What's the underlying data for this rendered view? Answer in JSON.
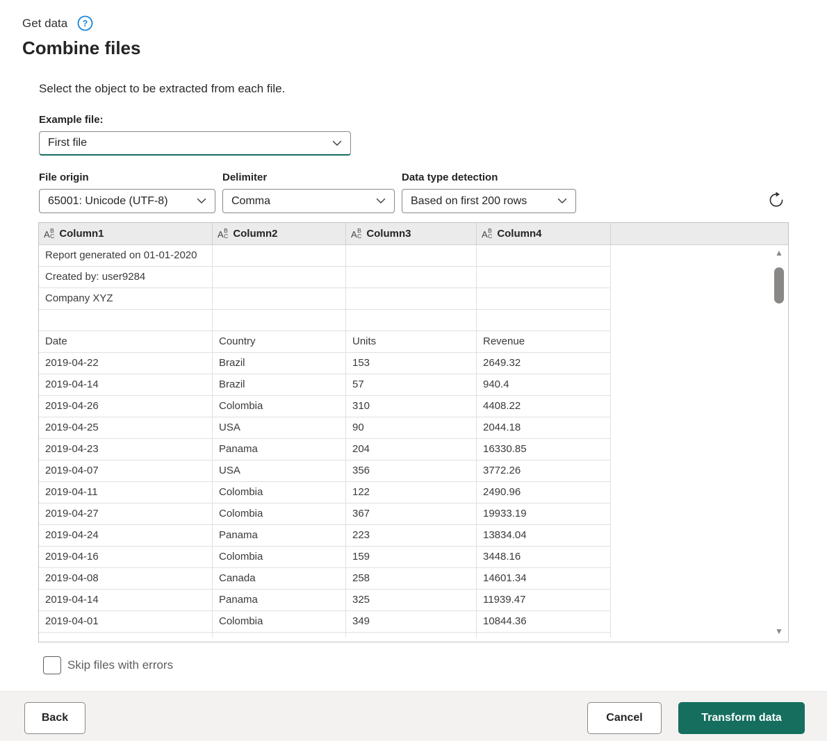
{
  "header": {
    "breadcrumb": "Get data",
    "title": "Combine files",
    "description": "Select the object to be extracted from each file."
  },
  "example_file": {
    "label": "Example file:",
    "value": "First file"
  },
  "options": [
    {
      "label": "File origin",
      "value": "65001: Unicode (UTF-8)"
    },
    {
      "label": "Delimiter",
      "value": "Comma"
    },
    {
      "label": "Data type detection",
      "value": "Based on first 200 rows"
    }
  ],
  "icons": {
    "help_glyph": "?",
    "scroll_up": "▲",
    "scroll_down": "▼"
  },
  "colors": {
    "accent_teal": "#156e5e",
    "help_blue": "#1a86d9",
    "footer_bg": "#f3f2f1"
  },
  "table": {
    "columns": [
      {
        "name": "Column1",
        "type_icon": "ABC"
      },
      {
        "name": "Column2",
        "type_icon": "ABC"
      },
      {
        "name": "Column3",
        "type_icon": "ABC"
      },
      {
        "name": "Column4",
        "type_icon": "ABC"
      }
    ],
    "rows": [
      [
        "Report generated on 01-01-2020",
        "",
        "",
        ""
      ],
      [
        "Created by: user9284",
        "",
        "",
        ""
      ],
      [
        "Company XYZ",
        "",
        "",
        ""
      ],
      [
        "",
        "",
        "",
        ""
      ],
      [
        "Date",
        "Country",
        "Units",
        "Revenue"
      ],
      [
        "2019-04-22",
        "Brazil",
        "153",
        "2649.32"
      ],
      [
        "2019-04-14",
        "Brazil",
        "57",
        "940.4"
      ],
      [
        "2019-04-26",
        "Colombia",
        "310",
        "4408.22"
      ],
      [
        "2019-04-25",
        "USA",
        "90",
        "2044.18"
      ],
      [
        "2019-04-23",
        "Panama",
        "204",
        "16330.85"
      ],
      [
        "2019-04-07",
        "USA",
        "356",
        "3772.26"
      ],
      [
        "2019-04-11",
        "Colombia",
        "122",
        "2490.96"
      ],
      [
        "2019-04-27",
        "Colombia",
        "367",
        "19933.19"
      ],
      [
        "2019-04-24",
        "Panama",
        "223",
        "13834.04"
      ],
      [
        "2019-04-16",
        "Colombia",
        "159",
        "3448.16"
      ],
      [
        "2019-04-08",
        "Canada",
        "258",
        "14601.34"
      ],
      [
        "2019-04-14",
        "Panama",
        "325",
        "11939.47"
      ],
      [
        "2019-04-01",
        "Colombia",
        "349",
        "10844.36"
      ]
    ]
  },
  "skip_checkbox": {
    "label": "Skip files with errors",
    "checked": false
  },
  "footer": {
    "back_label": "Back",
    "cancel_label": "Cancel",
    "transform_label": "Transform data"
  }
}
